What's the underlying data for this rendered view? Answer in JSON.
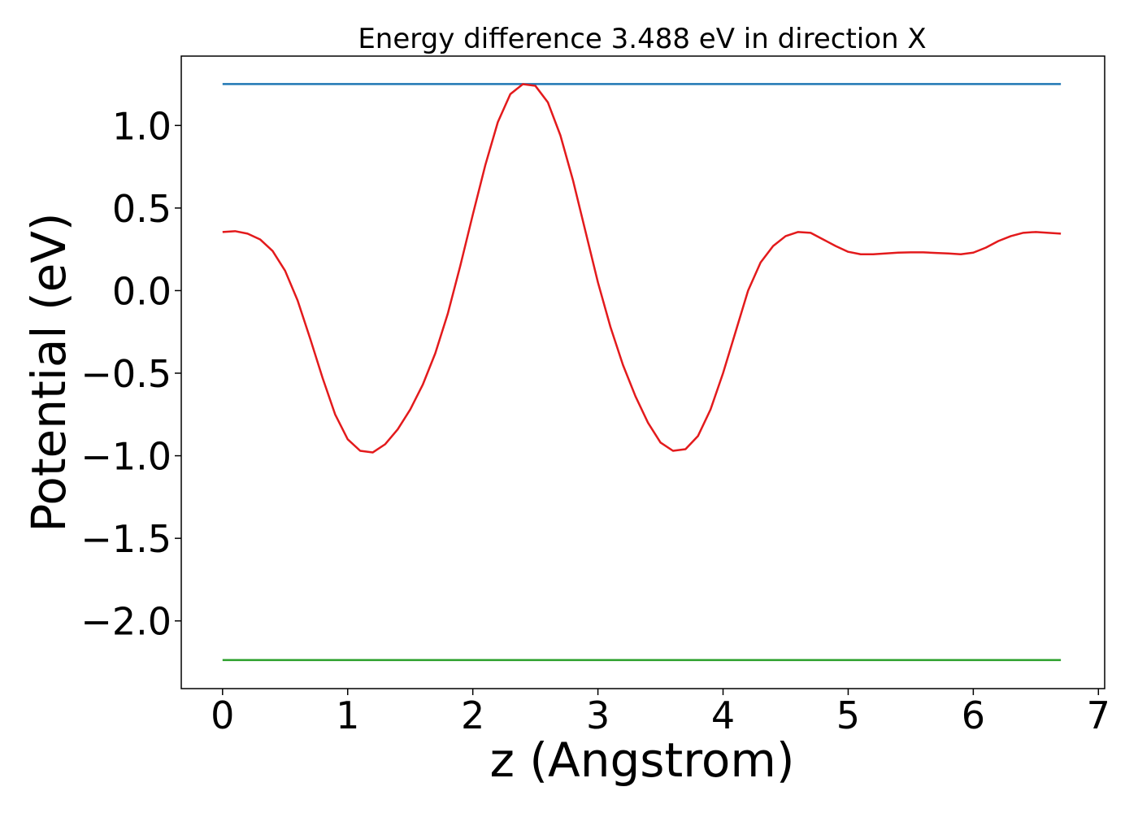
{
  "chart_data": {
    "type": "line",
    "title": "Energy difference 3.488 eV in direction X",
    "xlabel": "z (Angstrom)",
    "ylabel": "Potential (eV)",
    "xlim": [
      -0.33,
      7.05
    ],
    "ylim": [
      -2.41,
      1.42
    ],
    "grid": false,
    "legend": "none",
    "xticks": [
      0,
      1,
      2,
      3,
      4,
      5,
      6,
      7
    ],
    "xtick_labels": [
      "0",
      "1",
      "2",
      "3",
      "4",
      "5",
      "6",
      "7"
    ],
    "yticks": [
      1.0,
      0.5,
      0.0,
      -0.5,
      -1.0,
      -1.5,
      -2.0
    ],
    "ytick_labels": [
      "1.0",
      "0.5",
      "0.0",
      "−0.5",
      "−1.0",
      "−1.5",
      "−2.0"
    ],
    "series": [
      {
        "color": "#1f77b4",
        "x": [
          0,
          6.7
        ],
        "y": [
          1.251,
          1.251
        ]
      },
      {
        "color": "#2ca02c",
        "x": [
          0,
          6.7
        ],
        "y": [
          -2.237,
          -2.237
        ]
      },
      {
        "color": "#e31a1c",
        "x": [
          0,
          0.1,
          0.2,
          0.3,
          0.4,
          0.5,
          0.6,
          0.7,
          0.8,
          0.9,
          1.0,
          1.1,
          1.2,
          1.3,
          1.4,
          1.5,
          1.6,
          1.7,
          1.8,
          1.9,
          2.0,
          2.1,
          2.2,
          2.3,
          2.4,
          2.5,
          2.6,
          2.7,
          2.8,
          2.9,
          3.0,
          3.1,
          3.2,
          3.3,
          3.4,
          3.5,
          3.6,
          3.7,
          3.8,
          3.9,
          4.0,
          4.1,
          4.2,
          4.3,
          4.4,
          4.5,
          4.6,
          4.7,
          4.8,
          4.9,
          5.0,
          5.1,
          5.2,
          5.3,
          5.4,
          5.5,
          5.6,
          5.7,
          5.8,
          5.9,
          6.0,
          6.1,
          6.2,
          6.3,
          6.4,
          6.5,
          6.6,
          6.7
        ],
        "y": [
          0.355,
          0.36,
          0.345,
          0.31,
          0.24,
          0.12,
          -0.06,
          -0.29,
          -0.53,
          -0.75,
          -0.9,
          -0.97,
          -0.98,
          -0.93,
          -0.84,
          -0.72,
          -0.57,
          -0.38,
          -0.14,
          0.15,
          0.46,
          0.76,
          1.02,
          1.19,
          1.25,
          1.24,
          1.14,
          0.94,
          0.67,
          0.36,
          0.05,
          -0.22,
          -0.45,
          -0.64,
          -0.8,
          -0.92,
          -0.97,
          -0.96,
          -0.88,
          -0.72,
          -0.5,
          -0.25,
          0.0,
          0.17,
          0.27,
          0.33,
          0.355,
          0.35,
          0.31,
          0.27,
          0.235,
          0.22,
          0.22,
          0.225,
          0.23,
          0.232,
          0.232,
          0.228,
          0.225,
          0.22,
          0.23,
          0.26,
          0.3,
          0.33,
          0.35,
          0.355,
          0.35,
          0.345
        ]
      }
    ]
  }
}
